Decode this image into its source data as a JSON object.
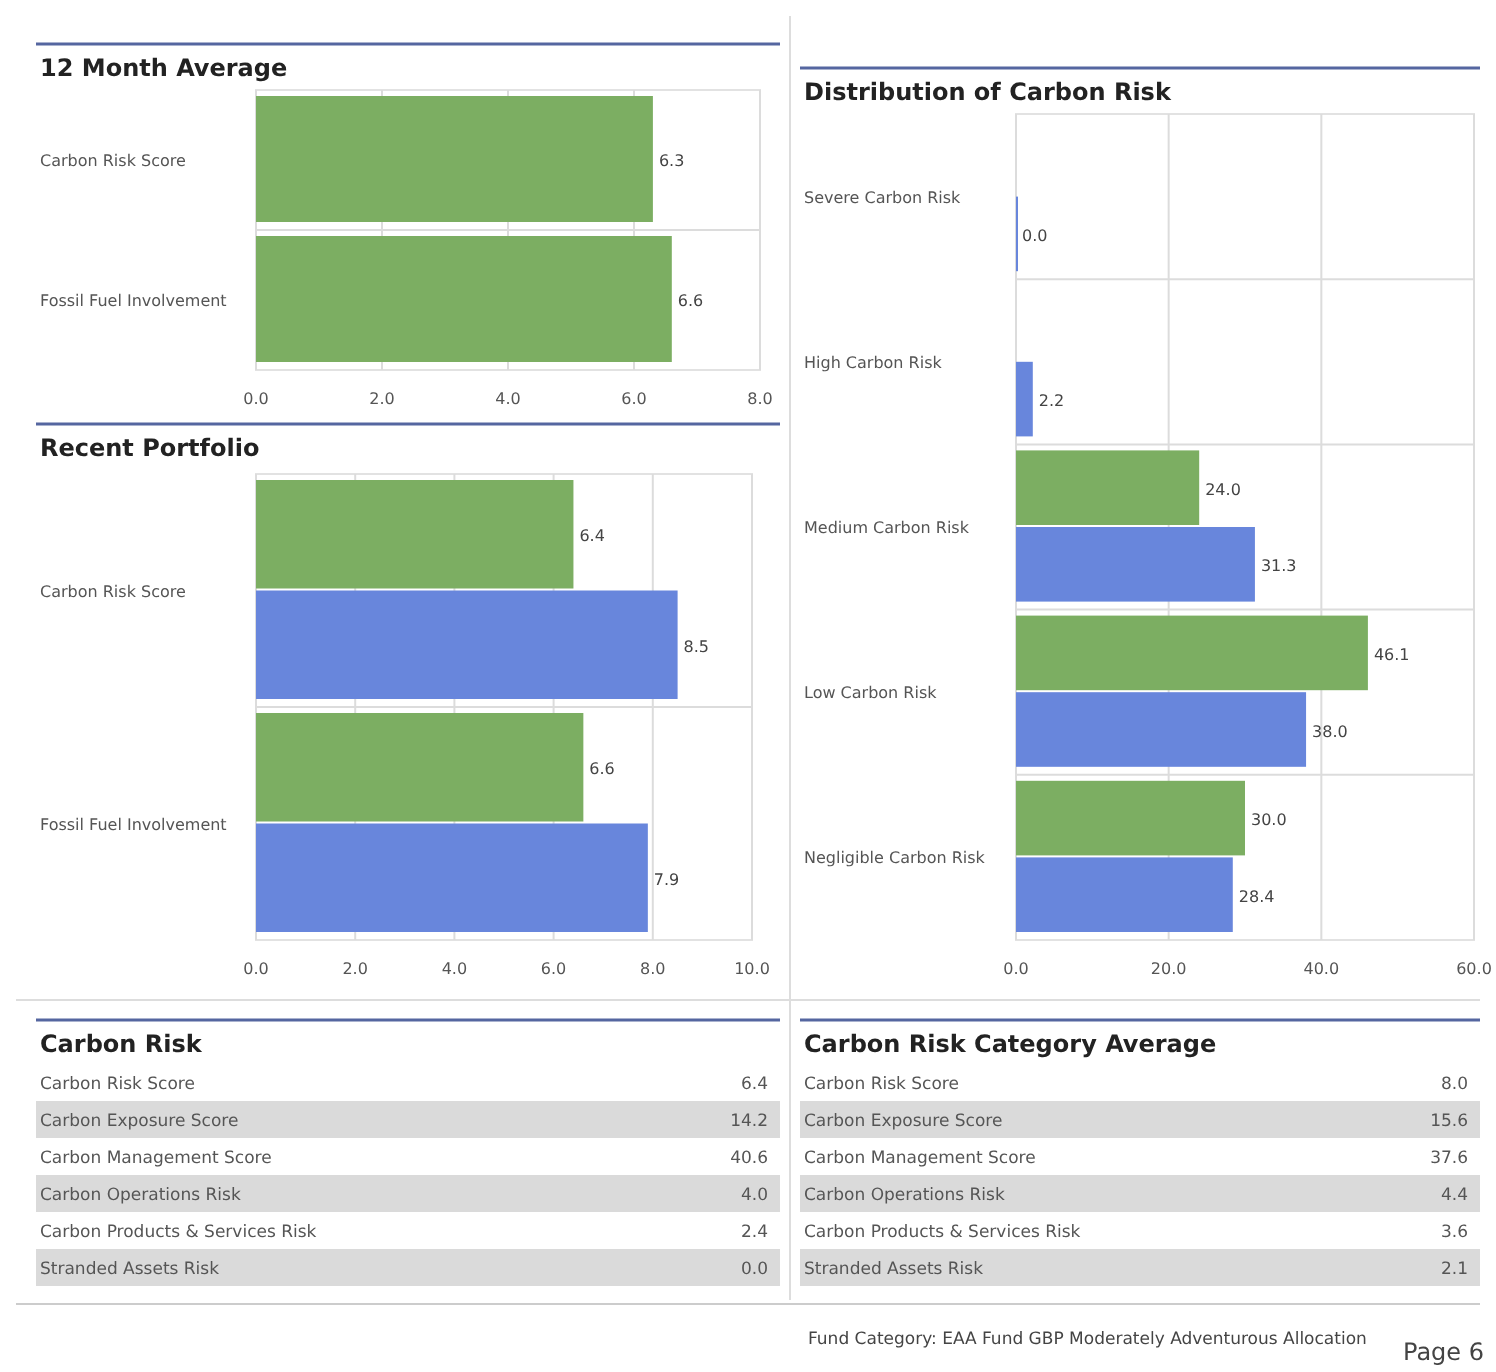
{
  "chart_data": [
    {
      "type": "bar",
      "title": "12 Month Average",
      "orientation": "horizontal",
      "categories": [
        "Carbon Risk Score",
        "Fossil Fuel Involvement"
      ],
      "series": [
        {
          "color": "#7cae62",
          "values": [
            6.3,
            6.6
          ],
          "value_labels": [
            "6.3",
            "6.6"
          ]
        }
      ],
      "xlim": [
        0,
        8
      ],
      "xticks": [
        {
          "value": 0,
          "label": "0.0"
        },
        {
          "value": 2,
          "label": "2.0"
        },
        {
          "value": 4,
          "label": "4.0"
        },
        {
          "value": 6,
          "label": "6.0"
        },
        {
          "value": 8,
          "label": "8.0"
        }
      ],
      "grid": "x"
    },
    {
      "type": "bar",
      "title": "Recent Portfolio",
      "orientation": "horizontal",
      "categories": [
        "Carbon Risk Score",
        "Fossil Fuel Involvement"
      ],
      "series": [
        {
          "color": "#7cae62",
          "values": [
            6.4,
            6.6
          ],
          "value_labels": [
            "6.4",
            "6.6"
          ]
        },
        {
          "color": "#6886dc",
          "values": [
            8.5,
            7.9
          ],
          "value_labels": [
            "8.5",
            "7.9"
          ]
        }
      ],
      "xlim": [
        0,
        10
      ],
      "xticks": [
        {
          "value": 0,
          "label": "0.0"
        },
        {
          "value": 2,
          "label": "2.0"
        },
        {
          "value": 4,
          "label": "4.0"
        },
        {
          "value": 6,
          "label": "6.0"
        },
        {
          "value": 8,
          "label": "8.0"
        },
        {
          "value": 10,
          "label": "10.0"
        }
      ],
      "grid": "x"
    },
    {
      "type": "bar",
      "title": "Distribution of Carbon Risk",
      "orientation": "horizontal",
      "categories": [
        "Severe Carbon Risk",
        "High Carbon Risk",
        "Medium Carbon Risk",
        "Low Carbon Risk",
        "Negligible Carbon Risk"
      ],
      "series": [
        {
          "color": "#7cae62",
          "values": [
            null,
            null,
            24.0,
            46.1,
            30.0
          ],
          "value_labels": [
            null,
            null,
            "24.0",
            "46.1",
            "30.0"
          ]
        },
        {
          "color": "#6886dc",
          "values": [
            0.0,
            2.2,
            31.3,
            38.0,
            28.4
          ],
          "value_labels": [
            "0.0",
            "2.2",
            "31.3",
            "38.0",
            "28.4"
          ]
        }
      ],
      "xlim": [
        0,
        60
      ],
      "xticks": [
        {
          "value": 0,
          "label": "0.0"
        },
        {
          "value": 20,
          "label": "20.0"
        },
        {
          "value": 40,
          "label": "40.0"
        },
        {
          "value": 60,
          "label": "60.0"
        }
      ],
      "grid": "x"
    },
    {
      "type": "other",
      "title": "Carbon Risk",
      "categories": [
        "Carbon Risk Score",
        "Carbon Exposure Score",
        "Carbon Management Score",
        "Carbon Operations Risk",
        "Carbon Products & Services Risk",
        "Stranded Assets Risk"
      ],
      "value_labels": [
        "6.4",
        "14.2",
        "40.6",
        "4.0",
        "2.4",
        "0.0"
      ]
    },
    {
      "type": "other",
      "title": "Carbon Risk Category Average",
      "categories": [
        "Carbon Risk Score",
        "Carbon Exposure Score",
        "Carbon Management Score",
        "Carbon Operations Risk",
        "Carbon Products & Services Risk",
        "Stranded Assets Risk"
      ],
      "value_labels": [
        "8.0",
        "15.6",
        "37.6",
        "4.4",
        "3.6",
        "2.1"
      ],
      "annotations": [
        "Fund Category: EAA Fund GBP Moderately Adventurous Allocation",
        "Page 6"
      ]
    }
  ]
}
